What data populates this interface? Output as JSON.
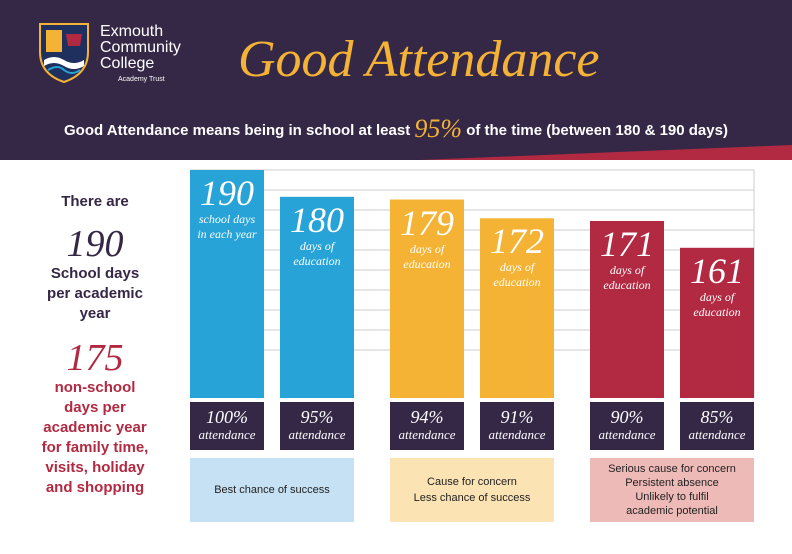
{
  "header": {
    "school_name_1": "Exmouth",
    "school_name_2": "Community",
    "school_name_3": "College",
    "school_trust": "Academy Trust",
    "title": "Good Attendance",
    "subtitle_pre": "Good Attendance means being in school at least",
    "subtitle_pct": "95%",
    "subtitle_post": "of the time (between 180 & 190 days)"
  },
  "side": {
    "there_are": "There are",
    "school_days_number": "190",
    "school_days_line1": "School days",
    "school_days_line2": "per academic",
    "school_days_line3": "year",
    "non_school_number": "175",
    "non_school_line1": "non-school",
    "non_school_line2": "days per",
    "non_school_line3": "academic year",
    "non_school_line4": "for family time,",
    "non_school_line5": "visits, holiday",
    "non_school_line6": "and shopping"
  },
  "bands": {
    "green_line1": "Best chance of success",
    "amber_line1": "Cause for concern",
    "amber_line2": "Less chance of success",
    "red_line1": "Serious cause for concern",
    "red_line2": "Persistent absence",
    "red_line3": "Unlikely to fulfil",
    "red_line4": "academic potential"
  },
  "colors": {
    "blue": "#27a3d8",
    "amber": "#f5b335",
    "red": "#b22a42",
    "purple": "#352746",
    "band_blue": "#c5e1f3",
    "band_amber": "#fbe3b4",
    "band_red": "#eebab8"
  },
  "chart_data": {
    "type": "bar",
    "categories": [
      "100%",
      "95%",
      "94%",
      "91%",
      "90%",
      "85%"
    ],
    "values": [
      190,
      180,
      179,
      172,
      171,
      161
    ],
    "bar_labels": [
      {
        "big": "190",
        "line1": "school days",
        "line2": "in each year"
      },
      {
        "big": "180",
        "line1": "days of",
        "line2": "education"
      },
      {
        "big": "179",
        "line1": "days of",
        "line2": "education"
      },
      {
        "big": "172",
        "line1": "days of",
        "line2": "education"
      },
      {
        "big": "171",
        "line1": "days of",
        "line2": "education"
      },
      {
        "big": "161",
        "line1": "days of",
        "line2": "education"
      }
    ],
    "attendance": [
      {
        "pct": "100%",
        "label": "attendance"
      },
      {
        "pct": "95%",
        "label": "attendance"
      },
      {
        "pct": "94%",
        "label": "attendance"
      },
      {
        "pct": "91%",
        "label": "attendance"
      },
      {
        "pct": "90%",
        "label": "attendance"
      },
      {
        "pct": "85%",
        "label": "attendance"
      }
    ],
    "bar_colors": [
      "#27a3d8",
      "#27a3d8",
      "#f5b335",
      "#f5b335",
      "#b22a42",
      "#b22a42"
    ],
    "ylim": [
      105,
      190
    ],
    "grid": true
  }
}
